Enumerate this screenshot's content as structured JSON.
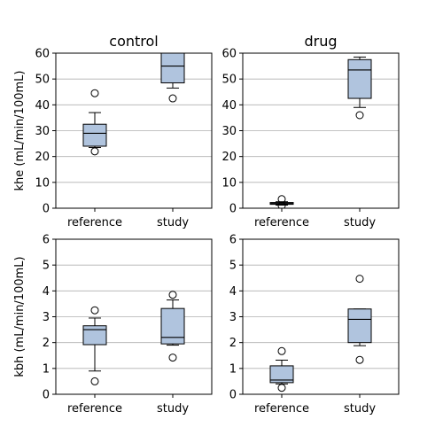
{
  "chart_data": [
    {
      "type": "box",
      "title": "control",
      "ylabel": "khe (mL/min/100mL)",
      "ylim": [
        0,
        60
      ],
      "yticks": [
        0,
        10,
        20,
        30,
        40,
        50,
        60
      ],
      "categories": [
        "reference",
        "study"
      ],
      "grid": "horizontal",
      "box_color": "#b0c4de",
      "boxes": [
        {
          "category": "reference",
          "whisker_low": 23.5,
          "q1": 24,
          "median": 29,
          "q3": 32.5,
          "whisker_high": 37,
          "outliers": [
            22,
            44.5
          ]
        },
        {
          "category": "study",
          "whisker_low": 46.5,
          "q1": 48.5,
          "median": 55,
          "q3": 60,
          "whisker_high": 61,
          "outliers": [
            42.5
          ]
        }
      ]
    },
    {
      "type": "box",
      "title": "drug",
      "ylabel": "",
      "ylim": [
        0,
        60
      ],
      "yticks": [
        0,
        10,
        20,
        30,
        40,
        50,
        60
      ],
      "categories": [
        "reference",
        "study"
      ],
      "grid": "horizontal",
      "box_color": "#b0c4de",
      "boxes": [
        {
          "category": "reference",
          "whisker_low": 1.2,
          "q1": 1.5,
          "median": 1.8,
          "q3": 2.2,
          "whisker_high": 2.5,
          "outliers": [
            3.5,
            1.0
          ]
        },
        {
          "category": "study",
          "whisker_low": 39,
          "q1": 42.5,
          "median": 53.5,
          "q3": 57.5,
          "whisker_high": 58.5,
          "outliers": [
            36
          ]
        }
      ]
    },
    {
      "type": "box",
      "title": "",
      "ylabel": "kbh (mL/min/100mL)",
      "ylim": [
        0,
        6
      ],
      "yticks": [
        0,
        1,
        2,
        3,
        4,
        5,
        6
      ],
      "categories": [
        "reference",
        "study"
      ],
      "grid": "horizontal",
      "box_color": "#b0c4de",
      "boxes": [
        {
          "category": "reference",
          "whisker_low": 0.9,
          "q1": 1.92,
          "median": 2.5,
          "q3": 2.65,
          "whisker_high": 2.95,
          "outliers": [
            0.5,
            3.25
          ]
        },
        {
          "category": "study",
          "whisker_low": 1.9,
          "q1": 1.95,
          "median": 2.2,
          "q3": 3.32,
          "whisker_high": 3.65,
          "outliers": [
            1.42,
            3.85
          ]
        }
      ]
    },
    {
      "type": "box",
      "title": "",
      "ylabel": "",
      "ylim": [
        0,
        6
      ],
      "yticks": [
        0,
        1,
        2,
        3,
        4,
        5,
        6
      ],
      "categories": [
        "reference",
        "study"
      ],
      "grid": "horizontal",
      "box_color": "#b0c4de",
      "boxes": [
        {
          "category": "reference",
          "whisker_low": 0.4,
          "q1": 0.45,
          "median": 0.55,
          "q3": 1.1,
          "whisker_high": 1.32,
          "outliers": [
            0.25,
            1.67
          ]
        },
        {
          "category": "study",
          "whisker_low": 1.88,
          "q1": 2.0,
          "median": 2.9,
          "q3": 3.3,
          "whisker_high": 3.3,
          "outliers": [
            1.33,
            4.47
          ]
        }
      ]
    }
  ]
}
